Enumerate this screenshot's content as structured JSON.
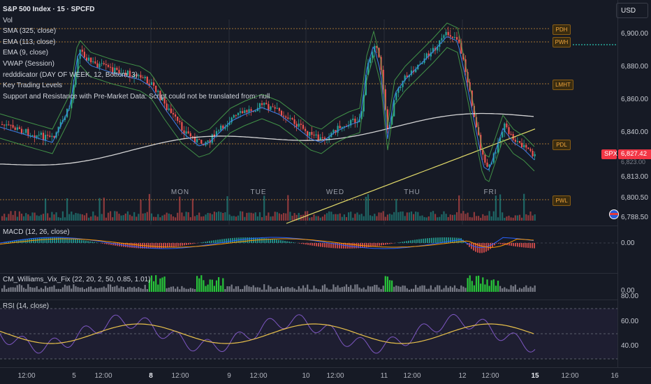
{
  "header": {
    "symbol_title": "S&P 500 Index · 15 · SPCFD",
    "currency_button": "USD"
  },
  "indicators": [
    "Vol",
    "SMA (325, close)",
    "EMA (113, close)",
    "EMA (9, close)",
    "VWAP (Session)",
    "redddicator (DAY OF WEEK, 12, Bottom, 3)",
    "Key Trading Levels",
    "Support and Resistance with Pre-Market Data: Script could not be translated from: null"
  ],
  "price_axis": {
    "ticks": [
      "6,900.00",
      "6,880.00",
      "6,860.00",
      "6,840.00",
      "6,813.00",
      "6,800.50",
      "6,788.50"
    ],
    "hidden_tick": "6,823.00",
    "last_price_symbol": "SPX",
    "last_price": "6,827.42"
  },
  "level_tags": [
    "PDH",
    "PWH",
    "LMHT",
    "PDL",
    "PWL"
  ],
  "day_labels": [
    "MON",
    "TUE",
    "WED",
    "THU",
    "FRI"
  ],
  "panes": {
    "macd": {
      "label": "MACD (12, 26, close)",
      "ticks": [
        "0.00"
      ]
    },
    "vix_fix": {
      "label": "CM_Williams_Vix_Fix (22, 20, 2, 50, 0.85, 1.01)",
      "ticks": [
        "0.00"
      ]
    },
    "rsi": {
      "label": "RSI (14, close)",
      "ticks": [
        "80.00",
        "60.00",
        "40.00"
      ]
    }
  },
  "time_axis": {
    "labels": [
      {
        "text": "12:00",
        "bold": false
      },
      {
        "text": "5",
        "bold": false
      },
      {
        "text": "12:00",
        "bold": false
      },
      {
        "text": "8",
        "bold": true
      },
      {
        "text": "12:00",
        "bold": false
      },
      {
        "text": "9",
        "bold": false
      },
      {
        "text": "12:00",
        "bold": false
      },
      {
        "text": "10",
        "bold": false
      },
      {
        "text": "12:00",
        "bold": false
      },
      {
        "text": "11",
        "bold": false
      },
      {
        "text": "12:00",
        "bold": false
      },
      {
        "text": "12",
        "bold": false
      },
      {
        "text": "12:00",
        "bold": false
      },
      {
        "text": "15",
        "bold": true
      },
      {
        "text": "12:00",
        "bold": false
      },
      {
        "text": "16",
        "bold": false
      }
    ]
  },
  "colors": {
    "background": "#161a25",
    "up_candle": "#26a69a",
    "down_candle": "#ef5350",
    "level_line": "#f0a53b",
    "sma_line": "#e8e8e8",
    "ema113_line": "#e5dd6a",
    "ema9_line": "#3f7fe8",
    "vwap_band": "#4caf50",
    "rsi_line": "#7e57c2",
    "rsi_ma": "#e9c14b",
    "vix_up": "#28c53a",
    "vix_neutral": "#787b86"
  }
}
